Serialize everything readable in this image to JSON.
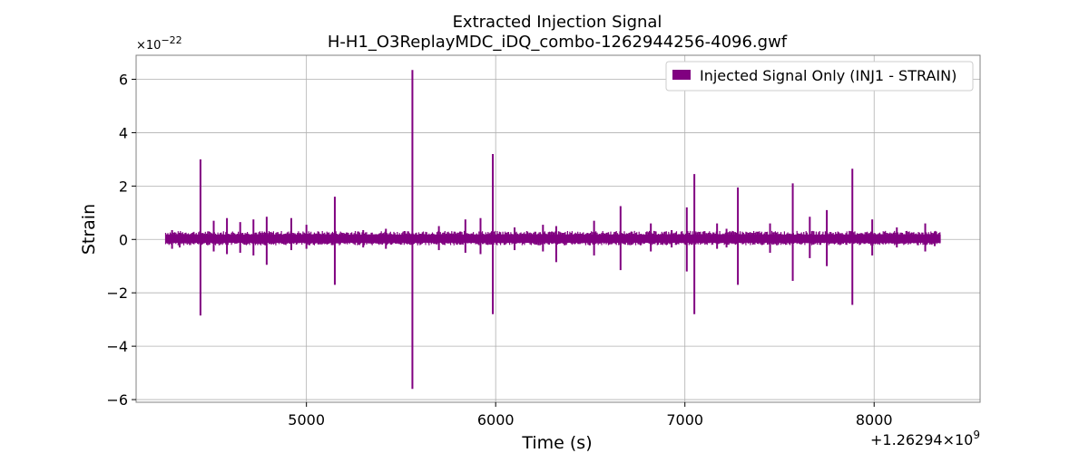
{
  "chart_data": {
    "type": "line",
    "title": "Extracted Injection Signal",
    "subtitle": "H-H1_O3ReplayMDC_iDQ_combo-1262944256-4096.gwf",
    "xlabel": "Time (s)",
    "ylabel": "Strain",
    "x_offset_label": "+1.26294",
    "x_offset_times": "×",
    "x_offset_base": "10",
    "x_offset_exp": "9",
    "y_scale_label": "×10",
    "y_scale_exp": "−22",
    "xlim": [
      4100,
      8560
    ],
    "ylim": [
      -6.1,
      6.9
    ],
    "xticks": [
      5000,
      6000,
      7000,
      8000
    ],
    "xtick_labels": [
      "5000",
      "6000",
      "7000",
      "8000"
    ],
    "yticks": [
      -6,
      -4,
      -2,
      0,
      2,
      4,
      6
    ],
    "ytick_labels": [
      "−6",
      "−4",
      "−2",
      "0",
      "2",
      "4",
      "6"
    ],
    "grid": true,
    "legend_position": "top-right",
    "color": "#800080",
    "series": [
      {
        "name": "Injected Signal Only (INJ1 - STRAIN)",
        "x_range": [
          4256,
          8352
        ],
        "baseline_band": [
          -0.12,
          0.18
        ],
        "spikes": [
          {
            "x": 4290,
            "max": 0.35,
            "min": -0.35
          },
          {
            "x": 4330,
            "max": 0.25,
            "min": -0.3
          },
          {
            "x": 4440,
            "max": 3.0,
            "min": -2.85
          },
          {
            "x": 4510,
            "max": 0.7,
            "min": -0.45
          },
          {
            "x": 4580,
            "max": 0.8,
            "min": -0.55
          },
          {
            "x": 4650,
            "max": 0.65,
            "min": -0.5
          },
          {
            "x": 4720,
            "max": 0.75,
            "min": -0.6
          },
          {
            "x": 4790,
            "max": 0.85,
            "min": -0.95
          },
          {
            "x": 4920,
            "max": 0.8,
            "min": -0.4
          },
          {
            "x": 5000,
            "max": 0.55,
            "min": -0.35
          },
          {
            "x": 5150,
            "max": 1.6,
            "min": -1.7
          },
          {
            "x": 5300,
            "max": 0.35,
            "min": -0.3
          },
          {
            "x": 5420,
            "max": 0.4,
            "min": -0.35
          },
          {
            "x": 5560,
            "max": 6.35,
            "min": -5.6
          },
          {
            "x": 5700,
            "max": 0.5,
            "min": -0.4
          },
          {
            "x": 5840,
            "max": 0.75,
            "min": -0.5
          },
          {
            "x": 5920,
            "max": 0.8,
            "min": -0.55
          },
          {
            "x": 5985,
            "max": 3.2,
            "min": -2.8
          },
          {
            "x": 6100,
            "max": 0.45,
            "min": -0.4
          },
          {
            "x": 6250,
            "max": 0.55,
            "min": -0.45
          },
          {
            "x": 6320,
            "max": 0.5,
            "min": -0.85
          },
          {
            "x": 6520,
            "max": 0.7,
            "min": -0.6
          },
          {
            "x": 6660,
            "max": 1.25,
            "min": -1.15
          },
          {
            "x": 6820,
            "max": 0.6,
            "min": -0.45
          },
          {
            "x": 6930,
            "max": 0.35,
            "min": -0.3
          },
          {
            "x": 7010,
            "max": 1.2,
            "min": -1.2
          },
          {
            "x": 7050,
            "max": 2.45,
            "min": -2.8
          },
          {
            "x": 7170,
            "max": 0.6,
            "min": -0.35
          },
          {
            "x": 7220,
            "max": 0.4,
            "min": -0.3
          },
          {
            "x": 7280,
            "max": 1.95,
            "min": -1.7
          },
          {
            "x": 7450,
            "max": 0.6,
            "min": -0.5
          },
          {
            "x": 7570,
            "max": 2.1,
            "min": -1.55
          },
          {
            "x": 7660,
            "max": 0.85,
            "min": -0.7
          },
          {
            "x": 7750,
            "max": 1.1,
            "min": -1.0
          },
          {
            "x": 7885,
            "max": 2.65,
            "min": -2.45
          },
          {
            "x": 7990,
            "max": 0.75,
            "min": -0.6
          },
          {
            "x": 8120,
            "max": 0.45,
            "min": -0.3
          },
          {
            "x": 8270,
            "max": 0.6,
            "min": -0.45
          },
          {
            "x": 8320,
            "max": 0.3,
            "min": -0.25
          }
        ]
      }
    ]
  }
}
